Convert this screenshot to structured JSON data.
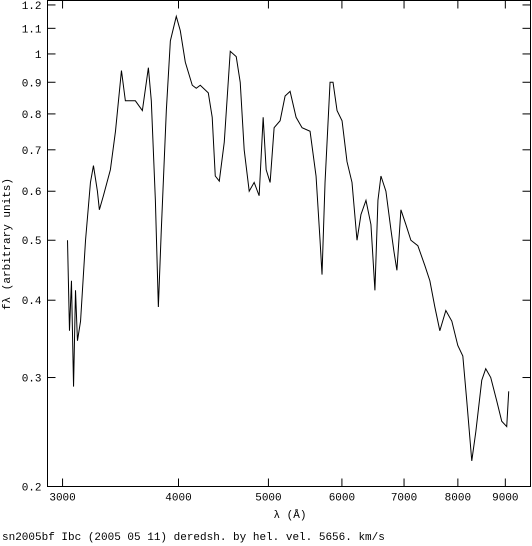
{
  "chart_data": {
    "type": "line",
    "x_label": "λ (Å)",
    "y_label": "fλ (arbitrary units)",
    "caption": "sn2005bf Ibc (2005 05 11) deredsh. by hel. vel.  5656. km/s",
    "xscale": "log",
    "yscale": "log",
    "xlim": [
      2890,
      9580
    ],
    "ylim": [
      0.2,
      1.22
    ],
    "xticks": [
      3000,
      4000,
      5000,
      6000,
      7000,
      8000,
      9000
    ],
    "yticks": [
      0.2,
      0.3,
      0.4,
      0.5,
      0.6,
      0.7,
      0.8,
      0.9,
      1,
      1.1,
      1.2
    ],
    "series": [
      {
        "color": "#000000",
        "x": [
          3037,
          3052,
          3067,
          3083,
          3098,
          3113,
          3137,
          3176,
          3215,
          3239,
          3271,
          3287,
          3320,
          3378,
          3421,
          3472,
          3506,
          3550,
          3594,
          3657,
          3712,
          3739,
          3777,
          3805,
          3833,
          3881,
          3920,
          3978,
          4018,
          4068,
          4139,
          4180,
          4222,
          4307,
          4349,
          4382,
          4426,
          4481,
          4548,
          4616,
          4662,
          4708,
          4767,
          4826,
          4886,
          4935,
          4972,
          5021,
          5071,
          5147,
          5211,
          5276,
          5355,
          5435,
          5544,
          5627,
          5683,
          5711,
          5754,
          5826,
          5869,
          5928,
          6002,
          6076,
          6152,
          6229,
          6290,
          6369,
          6448,
          6512,
          6561,
          6610,
          6692,
          6776,
          6826,
          6877,
          6946,
          7032,
          7120,
          7244,
          7371,
          7463,
          7556,
          7650,
          7765,
          7881,
          7999,
          8099,
          8179,
          8281,
          8364,
          8489,
          8573,
          8680,
          8810,
          8920,
          9031,
          9076
        ],
        "values": [
          0.5,
          0.357,
          0.43,
          0.29,
          0.415,
          0.344,
          0.37,
          0.5,
          0.62,
          0.66,
          0.6,
          0.56,
          0.59,
          0.65,
          0.75,
          0.94,
          0.84,
          0.84,
          0.84,
          0.81,
          0.95,
          0.84,
          0.58,
          0.39,
          0.52,
          0.81,
          1.05,
          1.15,
          1.09,
          0.97,
          0.89,
          0.88,
          0.89,
          0.865,
          0.79,
          0.635,
          0.623,
          0.72,
          1.01,
          0.99,
          0.9,
          0.7,
          0.6,
          0.62,
          0.59,
          0.79,
          0.65,
          0.62,
          0.76,
          0.78,
          0.855,
          0.87,
          0.79,
          0.76,
          0.75,
          0.635,
          0.5,
          0.44,
          0.62,
          0.9,
          0.9,
          0.81,
          0.78,
          0.67,
          0.62,
          0.5,
          0.55,
          0.58,
          0.53,
          0.415,
          0.58,
          0.635,
          0.6,
          0.52,
          0.48,
          0.447,
          0.56,
          0.53,
          0.5,
          0.49,
          0.455,
          0.43,
          0.39,
          0.357,
          0.385,
          0.37,
          0.338,
          0.325,
          0.275,
          0.22,
          0.245,
          0.297,
          0.31,
          0.3,
          0.275,
          0.255,
          0.25,
          0.285
        ]
      }
    ]
  }
}
